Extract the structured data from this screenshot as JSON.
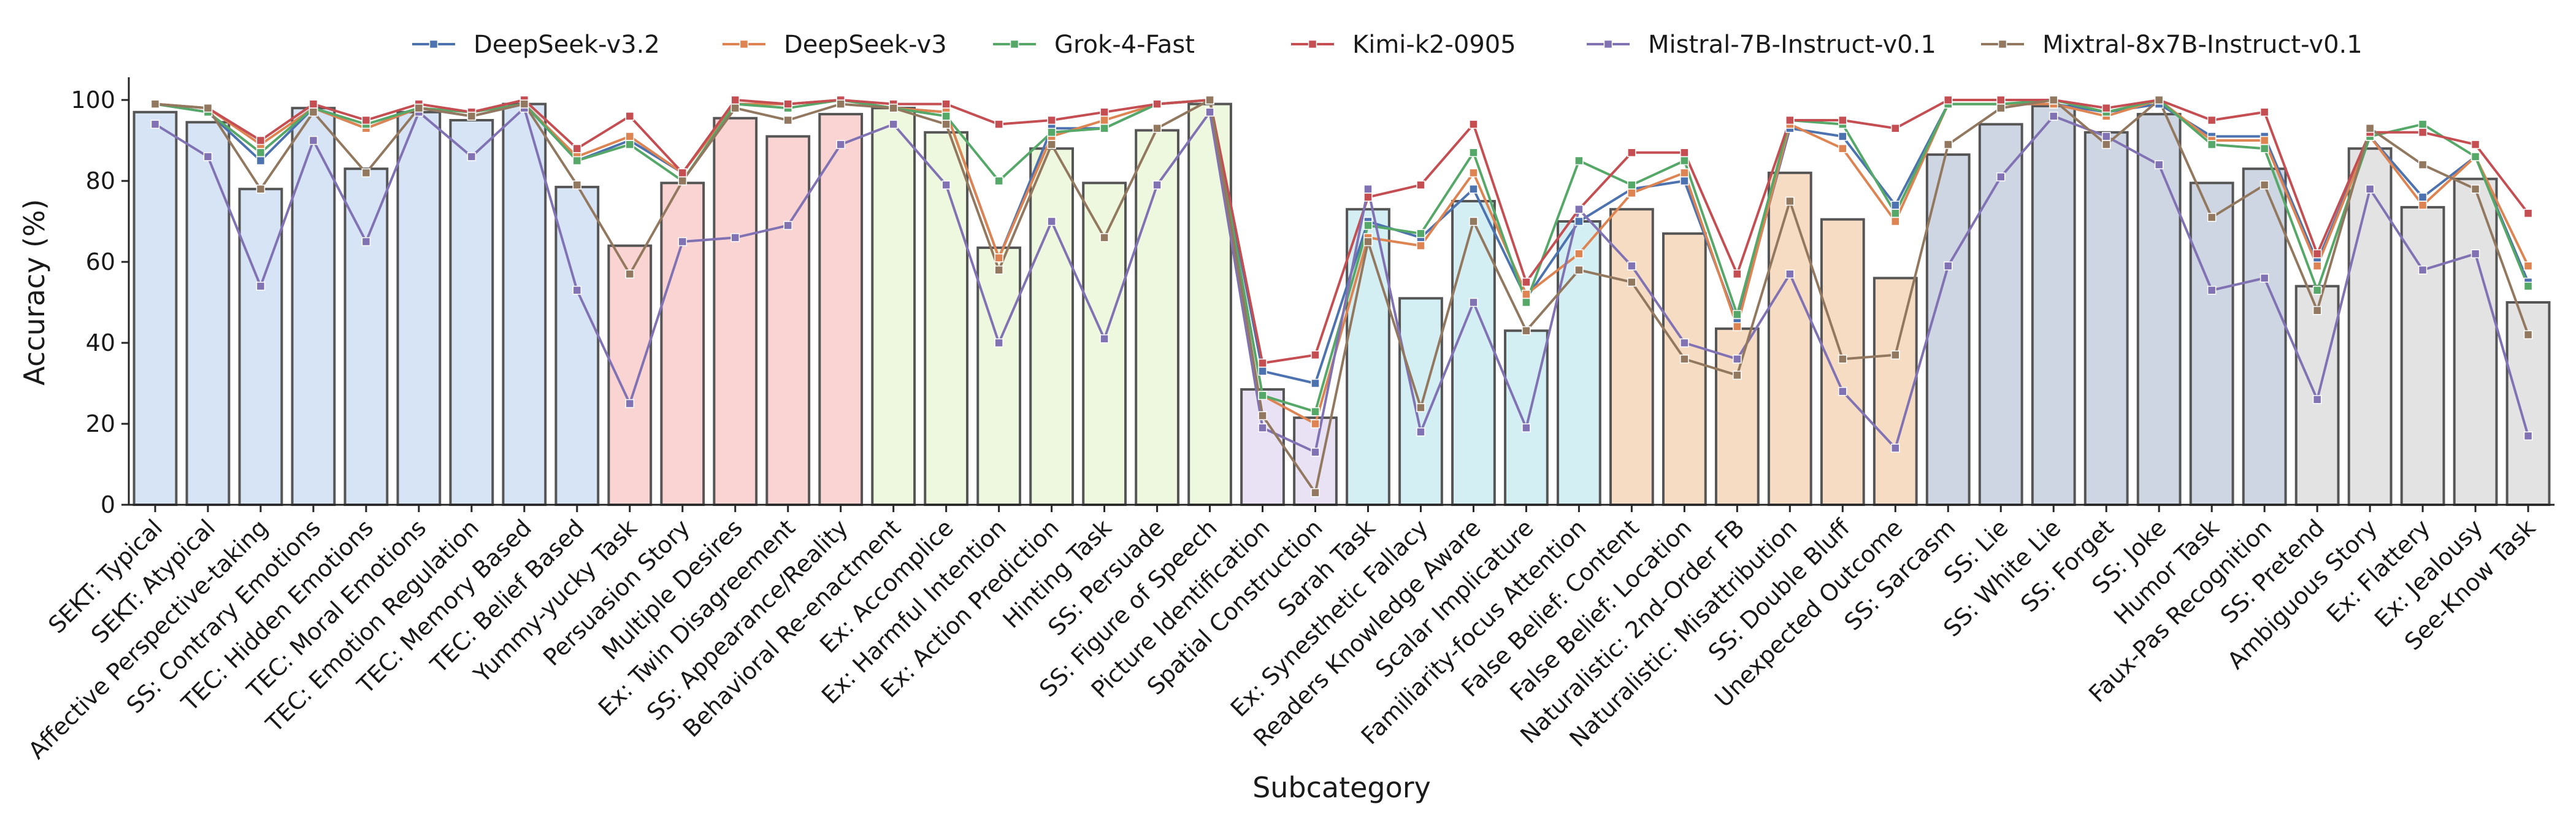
{
  "chart_data": {
    "type": "bar+line",
    "title": "",
    "xlabel": "Subcategory",
    "ylabel": "Accuracy (%)",
    "ylim": [
      0,
      105
    ],
    "yticks": [
      0,
      20,
      40,
      60,
      80,
      100
    ],
    "legend_position": "top",
    "grid": false,
    "categories": [
      "SEKT: Typical",
      "SEKT: Atypical",
      "Affective Perspective-taking",
      "SS: Contrary Emotions",
      "TEC: Hidden Emotions",
      "TEC: Moral Emotions",
      "TEC: Emotion Regulation",
      "TEC: Memory Based",
      "TEC: Belief Based",
      "Yummy-yucky Task",
      "Persuasion Story",
      "Multiple Desires",
      "Ex: Twin Disagreement",
      "SS: Appearance/Reality",
      "Behavioral Re-enactment",
      "Ex: Accomplice",
      "Ex: Harmful Intention",
      "Ex: Action Prediction",
      "Hinting Task",
      "SS: Persuade",
      "SS: Figure of Speech",
      "Picture Identification",
      "Spatial Construction",
      "Sarah Task",
      "Ex: Synesthetic Fallacy",
      "Readers Knowledge Aware",
      "Scalar Implicature",
      "Familiarity-focus Attention",
      "False Belief: Content",
      "False Belief: Location",
      "Naturalistic: 2nd-Order FB",
      "Naturalistic: Misattribution",
      "SS: Double Bluff",
      "Unexpected Outcome",
      "SS: Sarcasm",
      "SS: Lie",
      "SS: White Lie",
      "SS: Forget",
      "SS: Joke",
      "Humor Task",
      "Faux-Pas Recognition",
      "SS: Pretend",
      "Ambiguous Story",
      "Ex: Flattery",
      "Ex: Jealousy",
      "See-Know Task"
    ],
    "bar_values": [
      97,
      94.5,
      78,
      98,
      83,
      97,
      95,
      99,
      78.5,
      64,
      79.5,
      95.5,
      91,
      96.5,
      98,
      92,
      63.5,
      88,
      79.5,
      92.5,
      99,
      28.5,
      21.5,
      73,
      51,
      75,
      43,
      70,
      73,
      67,
      43.5,
      82,
      70.5,
      56,
      86.5,
      94,
      98.5,
      92,
      96.5,
      79.5,
      83,
      54,
      88,
      73.5,
      80.5,
      50
    ],
    "bar_colors": [
      "#d6e4f5",
      "#d6e4f5",
      "#d6e4f5",
      "#d6e4f5",
      "#d6e4f5",
      "#d6e4f5",
      "#d6e4f5",
      "#d6e4f5",
      "#d6e4f5",
      "#f9d4d2",
      "#f9d4d2",
      "#f9d4d2",
      "#f9d4d2",
      "#f9d4d2",
      "#eef8de",
      "#eef8de",
      "#eef8de",
      "#eef8de",
      "#eef8de",
      "#eef8de",
      "#eef8de",
      "#e9e2f5",
      "#e9e2f5",
      "#d3eff4",
      "#d3eff4",
      "#d3eff4",
      "#d3eff4",
      "#d3eff4",
      "#f7dcc4",
      "#f7dcc4",
      "#f7dcc4",
      "#f7dcc4",
      "#f7dcc4",
      "#f7dcc4",
      "#cdd6e2",
      "#cdd6e2",
      "#cdd6e2",
      "#cdd6e2",
      "#cdd6e2",
      "#cdd6e2",
      "#cdd6e2",
      "#e3e3e3",
      "#e3e3e3",
      "#e3e3e3",
      "#e3e3e3",
      "#e3e3e3"
    ],
    "series": [
      {
        "name": "DeepSeek-v3.2",
        "color": "#4c72b0",
        "values": [
          99,
          97,
          85,
          98,
          93,
          98,
          96,
          99,
          85,
          90,
          82,
          99,
          99,
          100,
          98,
          97,
          61,
          93,
          93,
          99,
          100,
          33,
          30,
          70,
          66,
          78,
          51,
          70,
          78,
          80,
          45,
          93,
          91,
          74,
          99,
          99,
          99,
          97,
          99,
          91,
          91,
          60,
          91,
          76,
          86,
          55
        ]
      },
      {
        "name": "DeepSeek-v3",
        "color": "#dd8452",
        "values": [
          99,
          98,
          89,
          98,
          93,
          98,
          97,
          99,
          86,
          91,
          82,
          99,
          99,
          100,
          98,
          97,
          61,
          91,
          95,
          99,
          100,
          27,
          20,
          66,
          64,
          82,
          52,
          62,
          77,
          82,
          44,
          94,
          88,
          70,
          99,
          99,
          99,
          96,
          100,
          90,
          90,
          59,
          91,
          74,
          86,
          59
        ]
      },
      {
        "name": "Grok-4-Fast",
        "color": "#55a868",
        "values": [
          99,
          97,
          87,
          98,
          94,
          98,
          97,
          99,
          85,
          89,
          80,
          99,
          98,
          100,
          98,
          96,
          80,
          92,
          93,
          99,
          100,
          27,
          23,
          69,
          67,
          87,
          50,
          85,
          79,
          85,
          47,
          95,
          94,
          72,
          99,
          99,
          100,
          97,
          100,
          89,
          88,
          53,
          91,
          94,
          86,
          54
        ]
      },
      {
        "name": "Kimi-k2-0905",
        "color": "#c44e52",
        "values": [
          99,
          98,
          90,
          99,
          95,
          99,
          97,
          100,
          88,
          96,
          82,
          100,
          99,
          100,
          99,
          99,
          94,
          95,
          97,
          99,
          100,
          35,
          37,
          76,
          79,
          94,
          55,
          73,
          87,
          87,
          57,
          95,
          95,
          93,
          100,
          100,
          100,
          98,
          100,
          95,
          97,
          62,
          92,
          92,
          89,
          72
        ]
      },
      {
        "name": "Mistral-7B-Instruct-v0.1",
        "color": "#8172b3",
        "values": [
          94,
          86,
          54,
          90,
          65,
          97,
          86,
          98,
          53,
          25,
          65,
          66,
          69,
          89,
          94,
          79,
          40,
          70,
          41,
          79,
          97,
          19,
          13,
          78,
          18,
          50,
          19,
          73,
          59,
          40,
          36,
          57,
          28,
          14,
          59,
          81,
          96,
          91,
          84,
          53,
          56,
          26,
          78,
          58,
          62,
          17
        ]
      },
      {
        "name": "Mixtral-8x7B-Instruct-v0.1",
        "color": "#937860",
        "values": [
          99,
          98,
          78,
          97,
          82,
          98,
          96,
          99,
          79,
          57,
          80,
          98,
          95,
          99,
          98,
          94,
          58,
          89,
          66,
          93,
          100,
          22,
          3,
          65,
          24,
          70,
          43,
          58,
          55,
          36,
          32,
          75,
          36,
          37,
          89,
          98,
          100,
          89,
          100,
          71,
          79,
          48,
          93,
          84,
          78,
          42
        ]
      }
    ]
  }
}
